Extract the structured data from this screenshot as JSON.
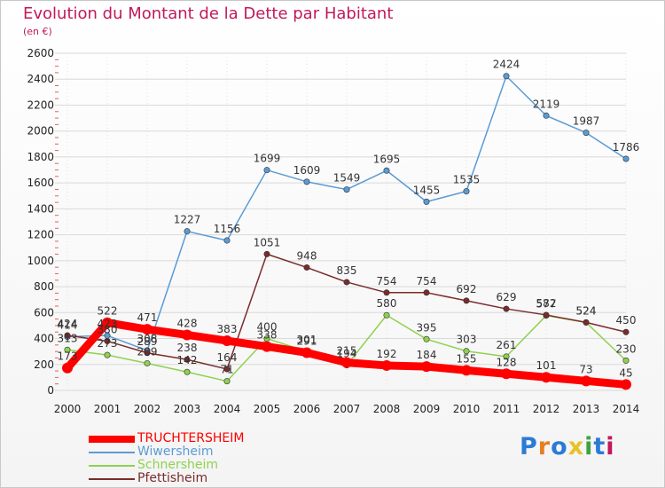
{
  "chart_data": {
    "type": "line",
    "title": "Evolution du Montant de la Dette par Habitant",
    "subtitle": "(en €)",
    "x": [
      "2000",
      "2001",
      "2002",
      "2003",
      "2004",
      "2005",
      "2006",
      "2007",
      "2008",
      "2009",
      "2010",
      "2011",
      "2012",
      "2013",
      "2014"
    ],
    "ylim": [
      0,
      2600
    ],
    "yticks": [
      0,
      200,
      400,
      600,
      800,
      1000,
      1200,
      1400,
      1600,
      1800,
      2000,
      2200,
      2400,
      2600
    ],
    "grid": true,
    "legend_position": "bottom-left",
    "series": [
      {
        "name": "TRUCHTERSHEIM",
        "color": "#ff0000",
        "values": [
          173,
          522,
          471,
          428,
          383,
          338,
          291,
          215,
          192,
          184,
          155,
          128,
          101,
          73,
          45
        ]
      },
      {
        "name": "Wiwersheim",
        "color": "#5b9bd5",
        "values": [
          414,
          423,
          308,
          1227,
          1156,
          1699,
          1609,
          1549,
          1695,
          1455,
          1535,
          2424,
          2119,
          1987,
          1786
        ]
      },
      {
        "name": "Schnersheim",
        "color": "#8fd14f",
        "values": [
          313,
          273,
          209,
          142,
          71,
          400,
          301,
          194,
          580,
          395,
          303,
          261,
          577,
          524,
          230
        ]
      },
      {
        "name": "Pfettisheim",
        "color": "#7b2b2b",
        "values": [
          424,
          380,
          289,
          238,
          164,
          1051,
          948,
          835,
          754,
          754,
          692,
          629,
          582,
          524,
          450
        ]
      }
    ]
  },
  "logo": {
    "text": "Proxiti",
    "colors": [
      "#2b7bd6",
      "#e67e22",
      "#2b7bd6",
      "#e8c12a",
      "#3fa142",
      "#2b7bd6",
      "#c2185b"
    ]
  }
}
